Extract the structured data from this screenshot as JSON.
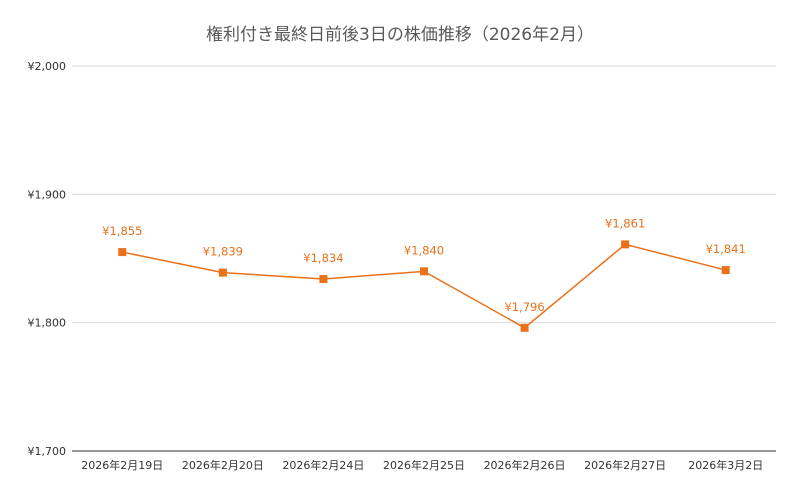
{
  "chart_data": {
    "type": "line",
    "title": "権利付き最終日前後3日の株価推移（2026年2月）",
    "xlabel": "",
    "ylabel": "",
    "categories": [
      "2026年2月19日",
      "2026年2月20日",
      "2026年2月24日",
      "2026年2月25日",
      "2026年2月26日",
      "2026年2月27日",
      "2026年3月2日"
    ],
    "series": [
      {
        "values": [
          1855,
          1839,
          1834,
          1840,
          1796,
          1861,
          1841
        ],
        "labels": [
          "¥1,855",
          "¥1,839",
          "¥1,834",
          "¥1,840",
          "¥1,796",
          "¥1,861",
          "¥1,841"
        ],
        "color": "#e8711a"
      }
    ],
    "ylim": [
      1700,
      2000
    ],
    "yticks": [
      1700,
      1800,
      1900,
      2000
    ],
    "ytick_labels": [
      "¥1,700",
      "¥1,800",
      "¥1,900",
      "¥2,000"
    ],
    "grid": true,
    "legend": "none",
    "gridline_color": "#d9d9d9"
  }
}
